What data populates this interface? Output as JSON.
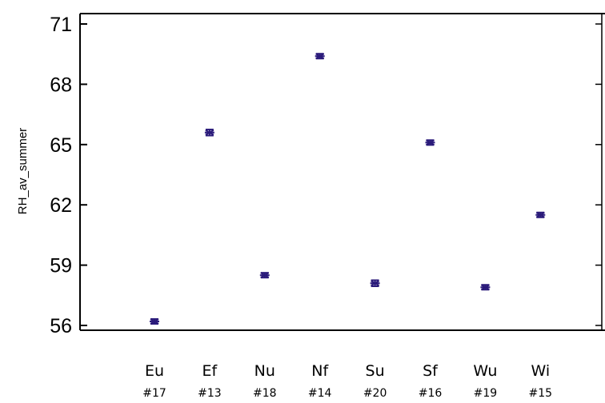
{
  "chart_data": {
    "type": "scatter",
    "title": "",
    "xlabel": "",
    "ylabel": "RH_av_summer",
    "ylim": [
      55.8,
      71
    ],
    "yticks": [
      56,
      59,
      62,
      65,
      68,
      71
    ],
    "grid": false,
    "categories": [
      {
        "name": "Eu",
        "id": "#17"
      },
      {
        "name": "Ef",
        "id": "#13"
      },
      {
        "name": "Nu",
        "id": "#18"
      },
      {
        "name": "Nf",
        "id": "#14"
      },
      {
        "name": "Su",
        "id": "#20"
      },
      {
        "name": "Sf",
        "id": "#16"
      },
      {
        "name": "Wu",
        "id": "#19"
      },
      {
        "name": "Wi",
        "id": "#15"
      }
    ],
    "series": [
      {
        "values": [
          56.2,
          65.6,
          58.5,
          69.4,
          58.1,
          65.1,
          57.9,
          61.5
        ],
        "errors": [
          0.12,
          0.15,
          0.12,
          0.12,
          0.15,
          0.12,
          0.12,
          0.12
        ]
      }
    ]
  },
  "colors": {
    "marker": "#2a1a7a",
    "axis": "#000000"
  }
}
